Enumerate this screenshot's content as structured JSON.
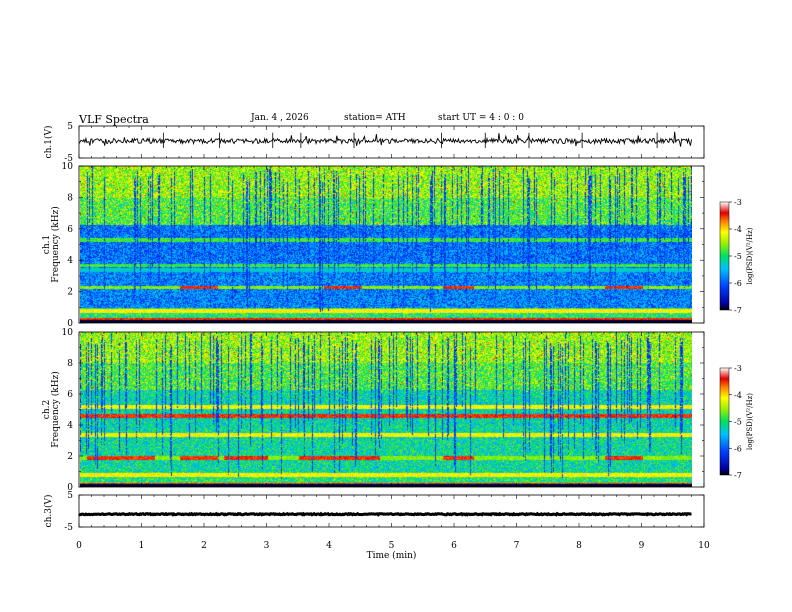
{
  "header": {
    "title": "VLF  Spectra",
    "date": "Jan. 4  , 2026",
    "station": "station= ATH",
    "start_ut": "start  UT  =   4 : 0  : 0"
  },
  "chart_data": [
    {
      "type": "line",
      "name": "ch1-waveform",
      "ylabel": "ch.1(V)",
      "yticks": [
        "5",
        "-5"
      ],
      "ylim": [
        -5,
        5
      ],
      "xlim": [
        0,
        10
      ],
      "x_extent_min": 9.8,
      "baseline_v": 0.3,
      "spike_times_min": [
        1.35,
        2.25,
        3.1,
        3.55,
        4.4,
        5.8,
        6.5,
        7.2,
        8.05,
        9.25
      ]
    },
    {
      "type": "heatmap",
      "name": "ch1-spectrogram",
      "ylabel": "Frequency (kHz)",
      "channel_label": "ch.1",
      "yticks": [
        "0",
        "2",
        "4",
        "6",
        "8",
        "10"
      ],
      "ylim": [
        0,
        10
      ],
      "xlim": [
        0,
        10
      ],
      "bands_khz": [
        {
          "freq": 0.2,
          "level": "red"
        },
        {
          "freq": 0.8,
          "level": "yellow"
        },
        {
          "freq": 2.3,
          "level": "red-intermittent"
        },
        {
          "freq": 3.4,
          "level": "cyan"
        },
        {
          "freq": 3.7,
          "level": "green"
        },
        {
          "freq": 5.3,
          "level": "green"
        }
      ]
    },
    {
      "type": "heatmap",
      "name": "ch2-spectrogram",
      "ylabel": "Frequency (kHz)",
      "channel_label": "ch.2",
      "yticks": [
        "0",
        "2",
        "4",
        "6",
        "8",
        "10"
      ],
      "ylim": [
        0,
        10
      ],
      "xlim": [
        0,
        10
      ],
      "bands_khz": [
        {
          "freq": 0.2,
          "level": "red"
        },
        {
          "freq": 0.8,
          "level": "yellow"
        },
        {
          "freq": 1.9,
          "level": "red-intermittent"
        },
        {
          "freq": 3.4,
          "level": "yellow"
        },
        {
          "freq": 4.6,
          "level": "red"
        },
        {
          "freq": 5.2,
          "level": "yellow"
        }
      ]
    },
    {
      "type": "line",
      "name": "ch3-waveform",
      "ylabel": "ch.3(V)",
      "yticks": [
        "5",
        "-5"
      ],
      "ylim": [
        -5,
        5
      ],
      "xlim": [
        0,
        10
      ],
      "x_extent_min": 9.8,
      "baseline_v": -1.0
    }
  ],
  "x_axis": {
    "label": "Time  (min)",
    "ticks": [
      "0",
      "1",
      "2",
      "3",
      "4",
      "5",
      "6",
      "7",
      "8",
      "9",
      "10"
    ]
  },
  "colorbars": [
    {
      "label": "log(PSD)(V²/Hz)",
      "ticks": [
        "-3",
        "-4",
        "-5",
        "-6",
        "-7"
      ],
      "range": [
        -7,
        -3
      ]
    },
    {
      "label": "log(PSD)(V²/Hz)",
      "ticks": [
        "-3",
        "-4",
        "-5",
        "-6",
        "-7"
      ],
      "range": [
        -7,
        -3
      ]
    }
  ]
}
